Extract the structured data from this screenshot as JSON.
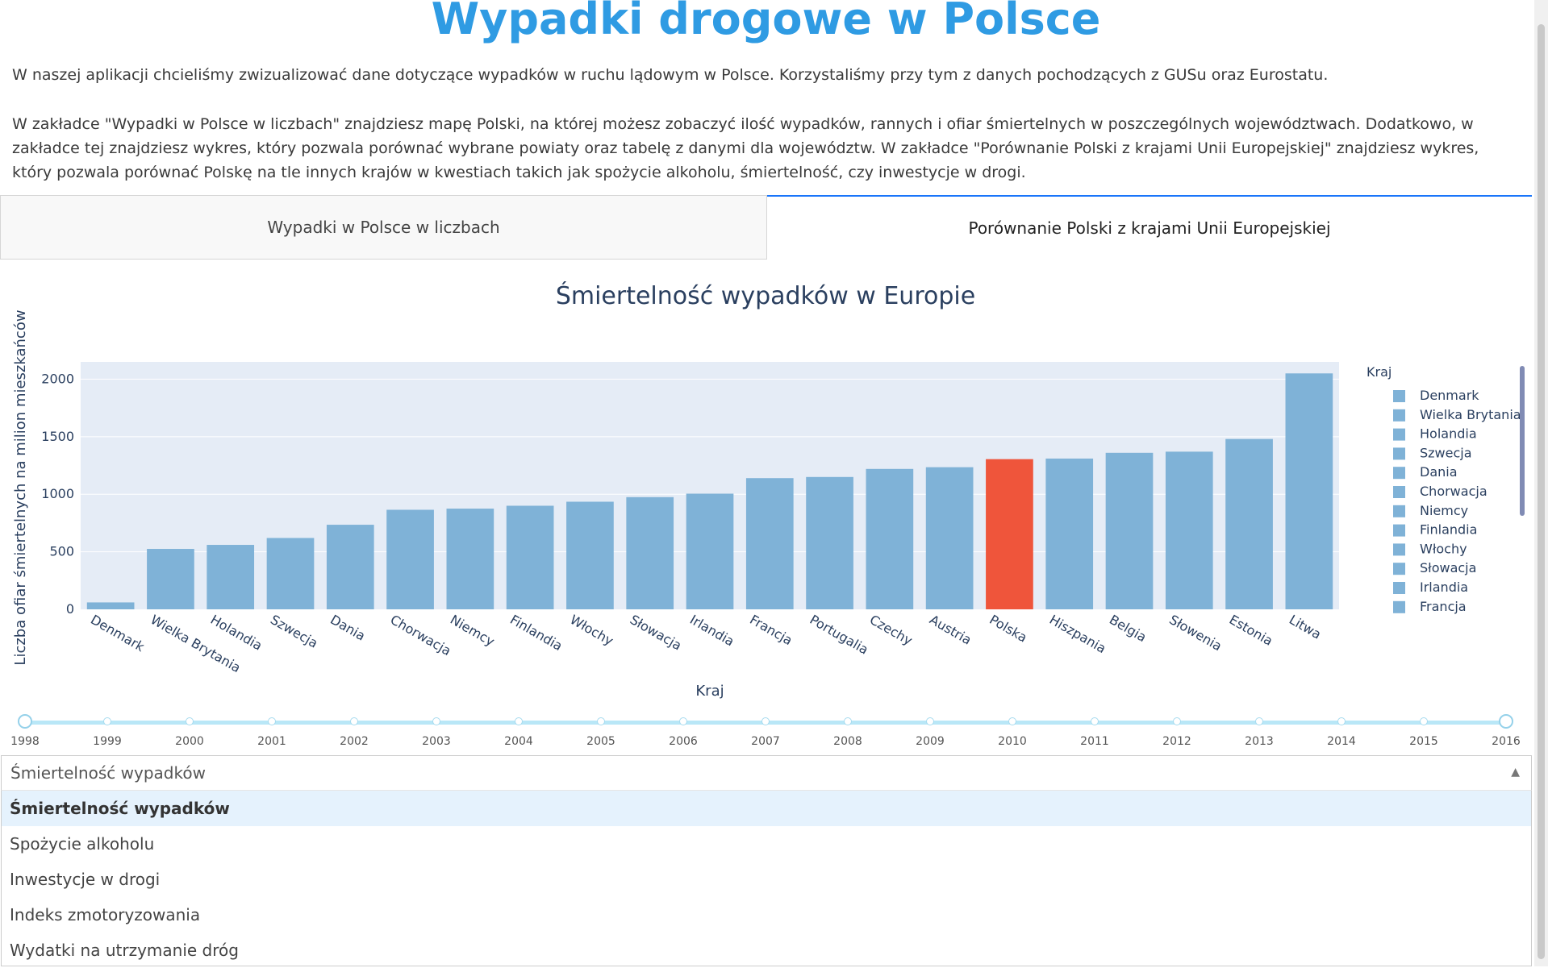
{
  "header": {
    "title": "Wypadki drogowe w Polsce"
  },
  "intro": {
    "p1": "W naszej aplikacji chcieliśmy zwizualizować dane dotyczące wypadków w ruchu lądowym w Polsce. Korzystaliśmy przy tym z danych pochodzących z GUSu oraz Eurostatu.",
    "p2": "W zakładce \"Wypadki w Polsce w liczbach\" znajdziesz mapę Polski, na której możesz zobaczyć ilość wypadków, rannych i ofiar śmiertelnych w poszczególnych województwach. Dodatkowo, w zakładce tej znajdziesz wykres, który pozwala porównać wybrane powiaty oraz tabelę z danymi dla województw. W zakładce \"Porównanie Polski z krajami Unii Europejskiej\" znajdziesz wykres, który pozwala porównać Polskę na tle innych krajów w kwestiach takich jak spożycie alkoholu, śmiertelność, czy inwestycje w drogi."
  },
  "tabs": [
    {
      "label": "Wypadki w Polsce w liczbach",
      "active": false
    },
    {
      "label": "Porównanie Polski z krajami Unii Europejskiej",
      "active": true
    }
  ],
  "chart_data": {
    "type": "bar",
    "title": "Śmiertelność wypadków w Europie",
    "xlabel": "Kraj",
    "ylabel": "Liczba ofiar śmiertelnych na milion mieszkańców",
    "legend_title": "Kraj",
    "legend_position": "right",
    "ylim": [
      0,
      2150
    ],
    "yticks": [
      0,
      500,
      1000,
      1500,
      2000
    ],
    "grid": true,
    "categories": [
      "Denmark",
      "Wielka Brytania",
      "Holandia",
      "Szwecja",
      "Dania",
      "Chorwacja",
      "Niemcy",
      "Finlandia",
      "Włochy",
      "Słowacja",
      "Irlandia",
      "Francja",
      "Portugalia",
      "Czechy",
      "Austria",
      "Polska",
      "Hiszpania",
      "Belgia",
      "Słowenia",
      "Estonia",
      "Litwa"
    ],
    "values": [
      60,
      525,
      560,
      620,
      735,
      865,
      875,
      900,
      935,
      975,
      1005,
      1140,
      1150,
      1220,
      1235,
      1305,
      1310,
      1360,
      1370,
      1480,
      2050
    ],
    "legend_entries": [
      "Denmark",
      "Wielka Brytania",
      "Holandia",
      "Szwecja",
      "Dania",
      "Chorwacja",
      "Niemcy",
      "Finlandia",
      "Włochy",
      "Słowacja",
      "Irlandia",
      "Francja"
    ],
    "bar_color": "#7fb2d7",
    "highlight_color": "#ef553b",
    "highlight_category": "Polska",
    "plot_bg": "#e5ecf6"
  },
  "slider": {
    "years": [
      "1998",
      "1999",
      "2000",
      "2001",
      "2002",
      "2003",
      "2004",
      "2005",
      "2006",
      "2007",
      "2008",
      "2009",
      "2010",
      "2011",
      "2012",
      "2013",
      "2014",
      "2015",
      "2016"
    ],
    "range": [
      "1998",
      "2016"
    ]
  },
  "dropdown": {
    "value": "Śmiertelność wypadków",
    "options": [
      "Śmiertelność wypadków",
      "Spożycie alkoholu",
      "Inwestycje w drogi",
      "Indeks zmotoryzowania",
      "Wydatki na utrzymanie dróg"
    ],
    "selected_index": 0
  }
}
